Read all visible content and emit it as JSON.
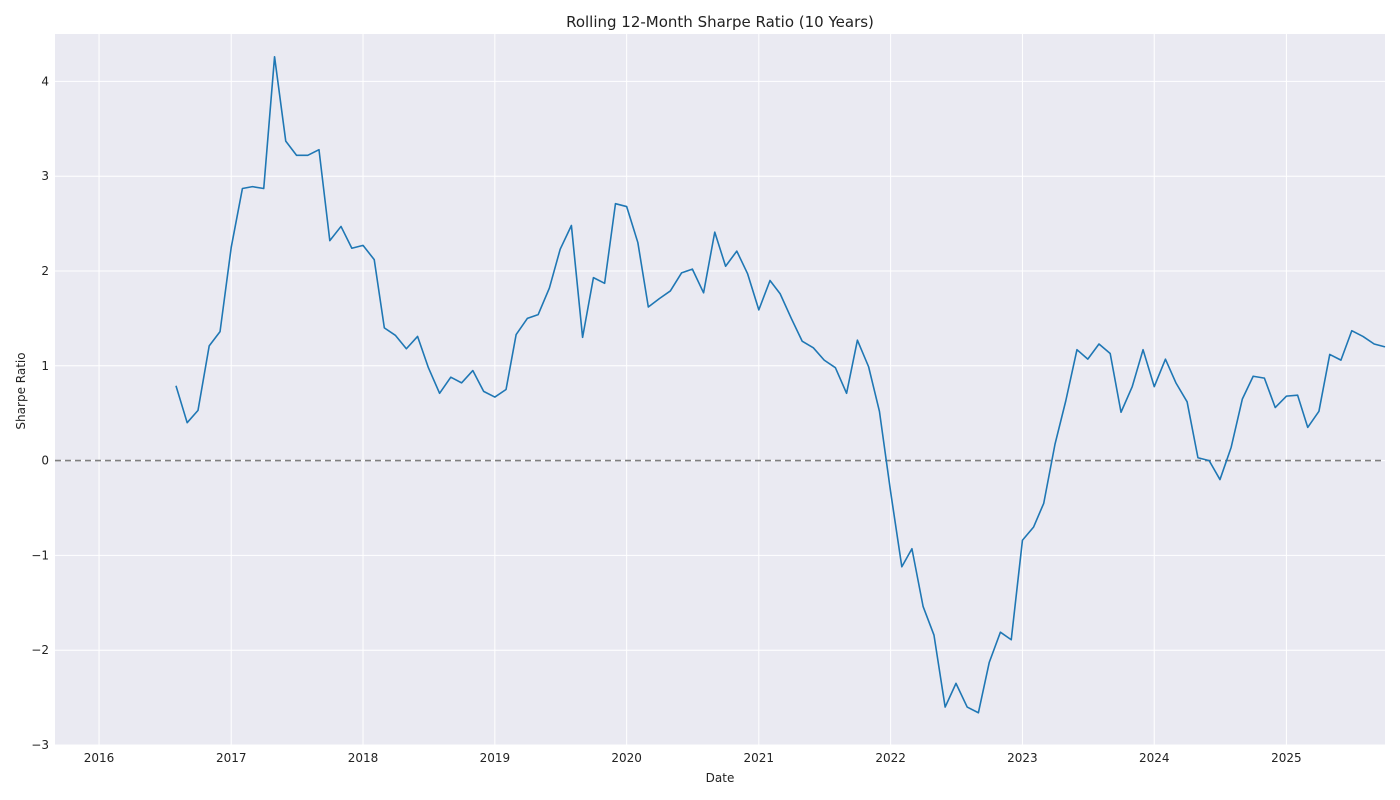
{
  "chart_data": {
    "type": "line",
    "title": "Rolling 12-Month Sharpe Ratio (10 Years)",
    "xlabel": "Date",
    "ylabel": "Sharpe Ratio",
    "x_axis_type": "date",
    "xlim": [
      "2015-09-01",
      "2025-10-01"
    ],
    "ylim": [
      -3,
      4.5
    ],
    "x_ticks": [
      "2016",
      "2017",
      "2018",
      "2019",
      "2020",
      "2021",
      "2022",
      "2023",
      "2024",
      "2025"
    ],
    "y_ticks": [
      -3,
      -2,
      -1,
      0,
      1,
      2,
      3,
      4
    ],
    "grid": true,
    "legend": "none",
    "reference_line": {
      "y": 0,
      "style": "dashed",
      "color": "#7f7f7f"
    },
    "series": [
      {
        "color": "#1f77b4",
        "x": [
          "2016-08",
          "2016-09",
          "2016-10",
          "2016-11",
          "2016-12",
          "2017-01",
          "2017-02",
          "2017-03",
          "2017-04",
          "2017-05",
          "2017-06",
          "2017-07",
          "2017-08",
          "2017-09",
          "2017-10",
          "2017-11",
          "2017-12",
          "2018-01",
          "2018-02",
          "2018-03",
          "2018-04",
          "2018-05",
          "2018-06",
          "2018-07",
          "2018-08",
          "2018-09",
          "2018-10",
          "2018-11",
          "2018-12",
          "2019-01",
          "2019-02",
          "2019-03",
          "2019-04",
          "2019-05",
          "2019-06",
          "2019-07",
          "2019-08",
          "2019-09",
          "2019-10",
          "2019-11",
          "2019-12",
          "2020-01",
          "2020-02",
          "2020-03",
          "2020-04",
          "2020-05",
          "2020-06",
          "2020-07",
          "2020-08",
          "2020-09",
          "2020-10",
          "2020-11",
          "2020-12",
          "2021-01",
          "2021-02",
          "2021-03",
          "2021-04",
          "2021-05",
          "2021-06",
          "2021-07",
          "2021-08",
          "2021-09",
          "2021-10",
          "2021-11",
          "2021-12",
          "2022-01",
          "2022-02",
          "2022-03",
          "2022-04",
          "2022-05",
          "2022-06",
          "2022-07",
          "2022-08",
          "2022-09",
          "2022-10",
          "2022-11",
          "2022-12",
          "2023-01",
          "2023-02",
          "2023-03",
          "2023-04",
          "2023-05",
          "2023-06",
          "2023-07",
          "2023-08",
          "2023-09",
          "2023-10",
          "2023-11",
          "2023-12",
          "2024-01",
          "2024-02",
          "2024-03",
          "2024-04",
          "2024-05",
          "2024-06",
          "2024-07",
          "2024-08",
          "2024-09",
          "2024-10",
          "2024-11",
          "2024-12",
          "2025-01",
          "2025-02",
          "2025-03",
          "2025-04",
          "2025-05",
          "2025-06",
          "2025-07",
          "2025-08",
          "2025-09",
          "2025-10"
        ],
        "y": [
          0.79,
          0.4,
          0.53,
          1.21,
          1.36,
          2.25,
          2.87,
          2.89,
          2.87,
          4.26,
          3.37,
          3.22,
          3.22,
          3.28,
          2.32,
          2.47,
          2.24,
          2.27,
          2.12,
          1.4,
          1.32,
          1.18,
          1.31,
          0.98,
          0.71,
          0.88,
          0.82,
          0.95,
          0.73,
          0.67,
          0.75,
          1.33,
          1.5,
          1.54,
          1.82,
          2.23,
          2.48,
          1.3,
          1.93,
          1.87,
          2.71,
          2.68,
          2.3,
          1.62,
          1.71,
          1.79,
          1.98,
          2.02,
          1.77,
          2.41,
          2.05,
          2.21,
          1.97,
          1.59,
          1.9,
          1.76,
          1.5,
          1.26,
          1.19,
          1.06,
          0.98,
          0.71,
          1.27,
          0.99,
          0.52,
          -0.33,
          -1.12,
          -0.93,
          -1.54,
          -1.84,
          -2.6,
          -2.35,
          -2.6,
          -2.66,
          -2.13,
          -1.81,
          -1.89,
          -0.84,
          -0.7,
          -0.45,
          0.17,
          0.63,
          1.17,
          1.07,
          1.23,
          1.13,
          0.51,
          0.78,
          1.17,
          0.78,
          1.07,
          0.82,
          0.62,
          0.03,
          0.0,
          -0.2,
          0.14,
          0.65,
          0.89,
          0.87,
          0.56,
          0.68,
          0.69,
          0.35,
          0.52,
          1.12,
          1.06,
          1.37,
          1.31,
          1.23,
          1.2
        ]
      }
    ]
  }
}
